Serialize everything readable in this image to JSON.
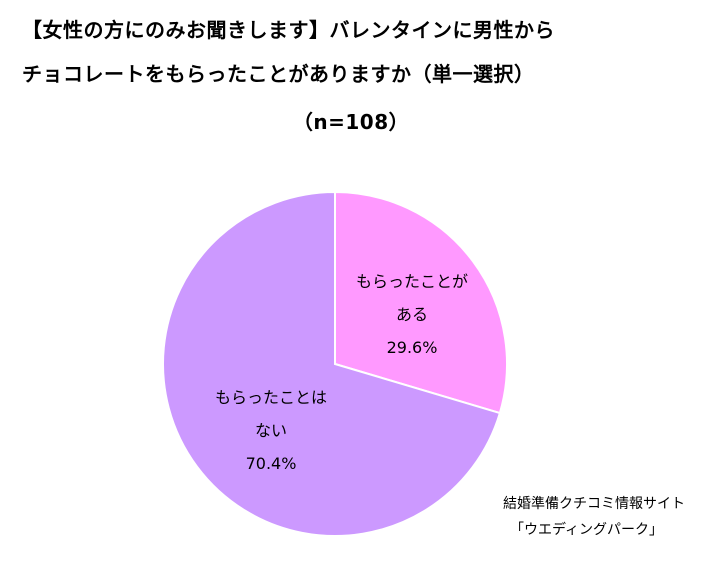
{
  "title": {
    "line1": "【女性の方にのみお聞きします】バレンタインに男性から",
    "line2": "チョコレートをもらったことがありますか（単一選択）",
    "line3": "（n=108）"
  },
  "chart_data": {
    "type": "pie",
    "slices": [
      {
        "label_lines": [
          "もらったことが",
          "ある"
        ],
        "value": 29.6,
        "value_label": "29.6%",
        "color": "#ff99ff"
      },
      {
        "label_lines": [
          "もらったことは",
          "ない"
        ],
        "value": 70.4,
        "value_label": "70.4%",
        "color": "#cc99ff"
      }
    ],
    "start_angle": "12 o'clock",
    "direction": "clockwise"
  },
  "source": {
    "line1": "結婚準備クチコミ情報サイト",
    "line2": "「ウエディングパーク」"
  }
}
